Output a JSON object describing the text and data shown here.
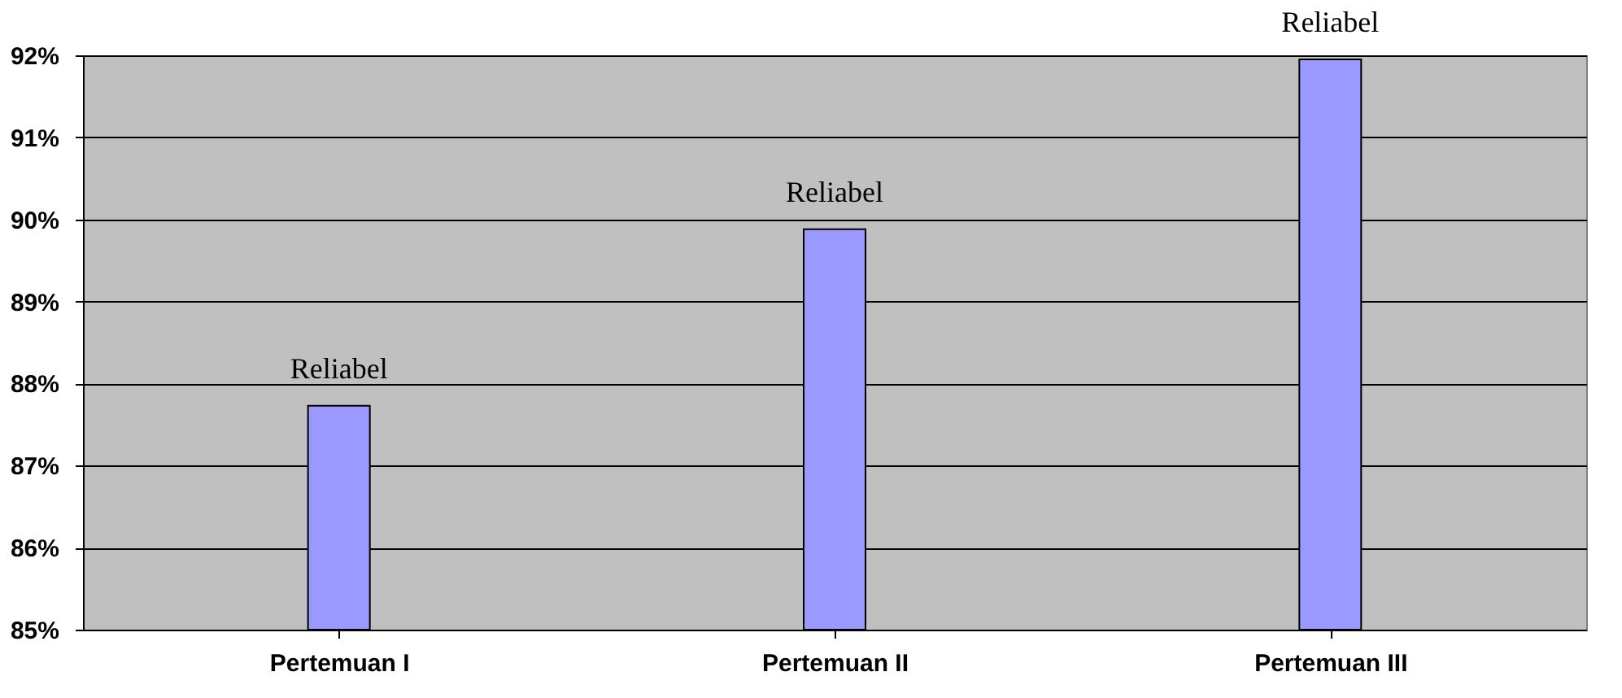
{
  "chart_data": {
    "type": "bar",
    "categories": [
      "Pertemuan I",
      "Pertemuan II",
      "Pertemuan III"
    ],
    "values": [
      87.73,
      89.88,
      91.95
    ],
    "value_labels": [
      "Reliabel",
      "Reliabel",
      "Reliabel"
    ],
    "color": "#9999ff",
    "ylim": [
      85,
      92
    ],
    "yticks": [
      {
        "value": 85,
        "label": "85%"
      },
      {
        "value": 86,
        "label": "86%"
      },
      {
        "value": 87,
        "label": "87%"
      },
      {
        "value": 88,
        "label": "88%"
      },
      {
        "value": 89,
        "label": "89%"
      },
      {
        "value": 90,
        "label": "90%"
      },
      {
        "value": 91,
        "label": "91%"
      },
      {
        "value": 92,
        "label": "92%"
      }
    ],
    "grid": "y"
  }
}
